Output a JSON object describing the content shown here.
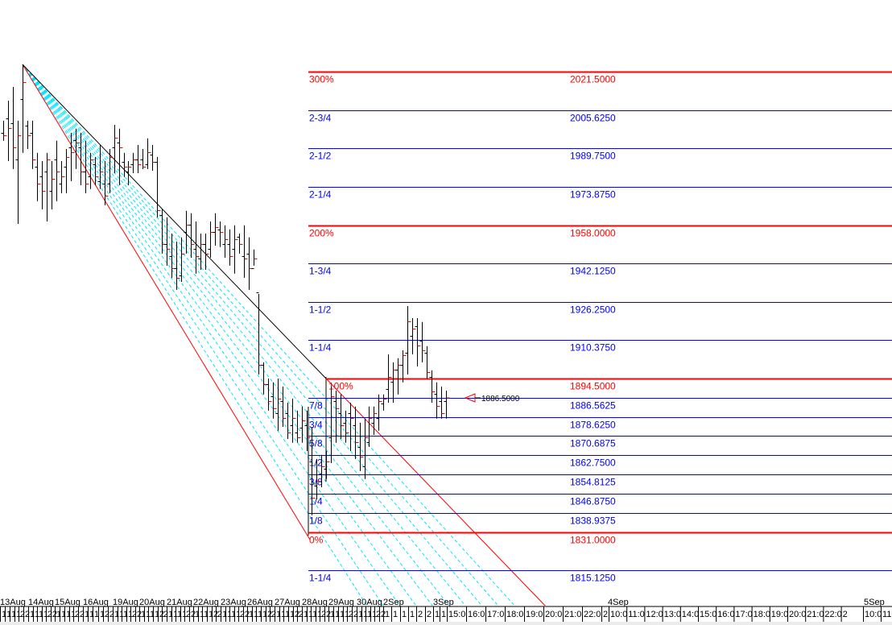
{
  "chart_data": {
    "type": "ohlc-bar",
    "title": "",
    "colors": {
      "bar": "#000000",
      "close_tick": "#ff0000",
      "level_major": "#ff0000",
      "level_minor": "#0000ff",
      "fan_inner": "#00e5ff",
      "fan_outer": "#ff0000",
      "fan_top": "#000000"
    },
    "ylim": [
      1805,
      2050
    ],
    "levels": [
      {
        "label": "300%",
        "value": "2021.5000",
        "price": 2021.5,
        "major": true
      },
      {
        "label": "2-3/4",
        "value": "2005.6250",
        "price": 2005.625,
        "major": false
      },
      {
        "label": "2-1/2",
        "value": "1989.7500",
        "price": 1989.75,
        "major": false
      },
      {
        "label": "2-1/4",
        "value": "1973.8750",
        "price": 1973.875,
        "major": false
      },
      {
        "label": "200%",
        "value": "1958.0000",
        "price": 1958.0,
        "major": true
      },
      {
        "label": "1-3/4",
        "value": "1942.1250",
        "price": 1942.125,
        "major": false
      },
      {
        "label": "1-1/2",
        "value": "1926.2500",
        "price": 1926.25,
        "major": false
      },
      {
        "label": "1-1/4",
        "value": "1910.3750",
        "price": 1910.375,
        "major": false
      },
      {
        "label": "100%",
        "value": "1894.5000",
        "price": 1894.5,
        "major": true
      },
      {
        "label": "7/8",
        "value": "1886.5625",
        "price": 1886.5625,
        "major": false
      },
      {
        "label": "3/4",
        "value": "1878.6250",
        "price": 1878.625,
        "major": false
      },
      {
        "label": "5/8",
        "value": "1870.6875",
        "price": 1870.6875,
        "major": false
      },
      {
        "label": "1/2",
        "value": "1862.7500",
        "price": 1862.75,
        "major": false
      },
      {
        "label": "3/8",
        "value": "1854.8125",
        "price": 1854.8125,
        "major": false
      },
      {
        "label": "1/4",
        "value": "1846.8750",
        "price": 1846.875,
        "major": false
      },
      {
        "label": "1/8",
        "value": "1838.9375",
        "price": 1838.9375,
        "major": false
      },
      {
        "label": "0%",
        "value": "1831.0000",
        "price": 1831.0,
        "major": true
      },
      {
        "label": "1-1/4",
        "value": "1815.1250",
        "price": 1815.125,
        "major": false
      }
    ],
    "last_price_marker": {
      "label": "1886.5000",
      "price": 1886.5
    },
    "fan_peak_price": 2024.5,
    "date_labels": [
      "13Aug",
      "14Aug",
      "15Aug",
      "16Aug",
      "19Aug",
      "20Aug",
      "21Aug",
      "22Aug",
      "23Aug",
      "26Aug",
      "27Aug",
      "28Aug",
      "29Aug",
      "30Aug",
      "2Sep",
      "3Sep",
      "4Sep",
      "5Sep"
    ],
    "day_tick_labels": [
      "1",
      "1",
      "1",
      "1",
      "2",
      "2"
    ],
    "sep3_tick_labels": [
      "1",
      "1",
      "15:0",
      "16:0",
      "17:0",
      "18:0",
      "19:0",
      "20:0",
      "21:0",
      "22:0",
      "2"
    ],
    "sep4_tick_labels": [
      "10:0",
      "11:0",
      "12:0",
      "13:0",
      "14:0",
      "15:0",
      "16:0",
      "17:0",
      "18:0",
      "19:0",
      "20:0",
      "21:0",
      "22:0",
      "2"
    ],
    "sep5_tick_labels": [
      "10:0",
      "11"
    ],
    "bars_ohlc": [
      [
        1996,
        2001.2,
        1992.9,
        1995
      ],
      [
        2002,
        2009.5,
        1984.5,
        1998
      ],
      [
        2000,
        2015.2,
        1981.2,
        1990
      ],
      [
        1985,
        2001.2,
        1958.5,
        1995
      ],
      [
        2010,
        2024.5,
        1987.9,
        2017
      ],
      [
        1999,
        2001.2,
        1989.5,
        1995
      ],
      [
        1996,
        2001.2,
        1981.2,
        1985
      ],
      [
        1982,
        1987.9,
        1967.9,
        1975
      ],
      [
        1978,
        1984.5,
        1964.5,
        1972
      ],
      [
        1980,
        1987.9,
        1959.5,
        1985
      ],
      [
        1972,
        1984.5,
        1964.5,
        1977
      ],
      [
        1985,
        1992.9,
        1967.9,
        1980
      ],
      [
        1975,
        1984.5,
        1971.2,
        1978
      ],
      [
        1982,
        1989.5,
        1971.2,
        1986
      ],
      [
        1990,
        1996.2,
        1976.2,
        1988
      ],
      [
        1993,
        1997.9,
        1981.2,
        1992
      ],
      [
        1990,
        1996.2,
        1974.5,
        1980
      ],
      [
        1980,
        1992.9,
        1971.2,
        1975
      ],
      [
        1978,
        1987.9,
        1972.9,
        1985
      ],
      [
        1983,
        1986.2,
        1974.5,
        1978
      ],
      [
        1976,
        1991.2,
        1972.9,
        1980
      ],
      [
        1975,
        1984.5,
        1966.2,
        1970
      ],
      [
        1975,
        1989.5,
        1971.2,
        1986
      ],
      [
        1990,
        1999.5,
        1979.5,
        1994
      ],
      [
        1992,
        1997.9,
        1974.5,
        1990
      ],
      [
        1984,
        1987.9,
        1977.9,
        1982
      ],
      [
        1980,
        1984.5,
        1974.5,
        1982
      ],
      [
        1983,
        1987.9,
        1979.5,
        1985
      ],
      [
        1985,
        1991.2,
        1979.5,
        1983
      ],
      [
        1985,
        1989.5,
        1981.2,
        1982
      ],
      [
        1983,
        1993.9,
        1981.2,
        1988
      ],
      [
        1987,
        1991.2,
        1980.5,
        1984
      ],
      [
        1984,
        1986.2,
        1961.2,
        1964
      ],
      [
        1962,
        1964.5,
        1946.2,
        1950
      ],
      [
        1950,
        1961.2,
        1941.2,
        1948
      ],
      [
        1945,
        1954.5,
        1936.2,
        1940
      ],
      [
        1940,
        1951.2,
        1931.2,
        1936
      ],
      [
        1937,
        1952.9,
        1934.5,
        1946
      ],
      [
        1955,
        1963.9,
        1946.2,
        1958
      ],
      [
        1958,
        1962.9,
        1944.5,
        1950
      ],
      [
        1948,
        1959.5,
        1937.9,
        1945
      ],
      [
        1944,
        1954.5,
        1939.5,
        1950
      ],
      [
        1950,
        1954.5,
        1939.5,
        1946
      ],
      [
        1948,
        1959.5,
        1944.5,
        1955
      ],
      [
        1955,
        1962.9,
        1949.5,
        1957
      ],
      [
        1956,
        1959.5,
        1948.9,
        1955
      ],
      [
        1950,
        1957.9,
        1944.5,
        1952
      ],
      [
        1950,
        1956.2,
        1941.2,
        1945
      ],
      [
        1948,
        1957.9,
        1937.9,
        1952
      ],
      [
        1953,
        1954.5,
        1946.2,
        1950
      ],
      [
        1945,
        1957.9,
        1936.2,
        1944
      ],
      [
        1946,
        1952.9,
        1931.2,
        1940
      ],
      [
        1940,
        1947.9,
        1941.2,
        1944
      ],
      [
        1930,
        1929.5,
        1896.2,
        1900
      ],
      [
        1900,
        1901.2,
        1887.9,
        1892
      ],
      [
        1892,
        1894.5,
        1881.2,
        1885
      ],
      [
        1887,
        1892.9,
        1877.9,
        1882
      ],
      [
        1880,
        1894.5,
        1872.9,
        1886
      ],
      [
        1885,
        1891.2,
        1874.5,
        1878
      ],
      [
        1880,
        1884.5,
        1869.5,
        1872
      ],
      [
        1875,
        1886.2,
        1867.9,
        1878
      ],
      [
        1872,
        1881.2,
        1867.9,
        1870
      ],
      [
        1874,
        1882.9,
        1867.9,
        1877
      ],
      [
        1875,
        1881.2,
        1864.5,
        1870
      ],
      [
        1860,
        1874.5,
        1837.9,
        1845
      ],
      [
        1850,
        1861.2,
        1844.5,
        1852
      ],
      [
        1855,
        1862.9,
        1849.5,
        1858
      ],
      [
        1857,
        1864.5,
        1852.9,
        1860
      ],
      [
        1870,
        1891.2,
        1859.5,
        1887
      ],
      [
        1885,
        1889.5,
        1867.9,
        1882
      ],
      [
        1880,
        1887.9,
        1869.5,
        1875
      ],
      [
        1876,
        1881.2,
        1867.9,
        1872
      ],
      [
        1880,
        1884.5,
        1864.5,
        1878
      ],
      [
        1875,
        1882.9,
        1861.2,
        1868
      ],
      [
        1866,
        1876.2,
        1856.2,
        1862
      ],
      [
        1858,
        1877.9,
        1852.9,
        1870
      ],
      [
        1868,
        1882.9,
        1866.2,
        1878
      ],
      [
        1876,
        1882.9,
        1871.2,
        1880
      ],
      [
        1878,
        1887.9,
        1872.9,
        1885
      ],
      [
        1884,
        1887.9,
        1881.2,
        1886
      ],
      [
        1890,
        1904.5,
        1884.5,
        1895
      ],
      [
        1893,
        1901.2,
        1884.5,
        1898
      ],
      [
        1898,
        1902.9,
        1887.9,
        1900
      ],
      [
        1900,
        1906.2,
        1892.9,
        1904
      ],
      [
        1905,
        1924.5,
        1896.2,
        1918
      ],
      [
        1912,
        1919.5,
        1904.5,
        1915
      ],
      [
        1916,
        1919.5,
        1899.5,
        1908
      ],
      [
        1910,
        1917.9,
        1901.2,
        1906
      ],
      [
        1905,
        1907.9,
        1894.5,
        1897
      ],
      [
        1895,
        1897.9,
        1884.5,
        1889
      ],
      [
        1888,
        1892.9,
        1877.9,
        1883
      ],
      [
        1885,
        1891.2,
        1877.9,
        1880
      ],
      [
        1885,
        1889.5,
        1877.9,
        1886.5
      ]
    ]
  }
}
